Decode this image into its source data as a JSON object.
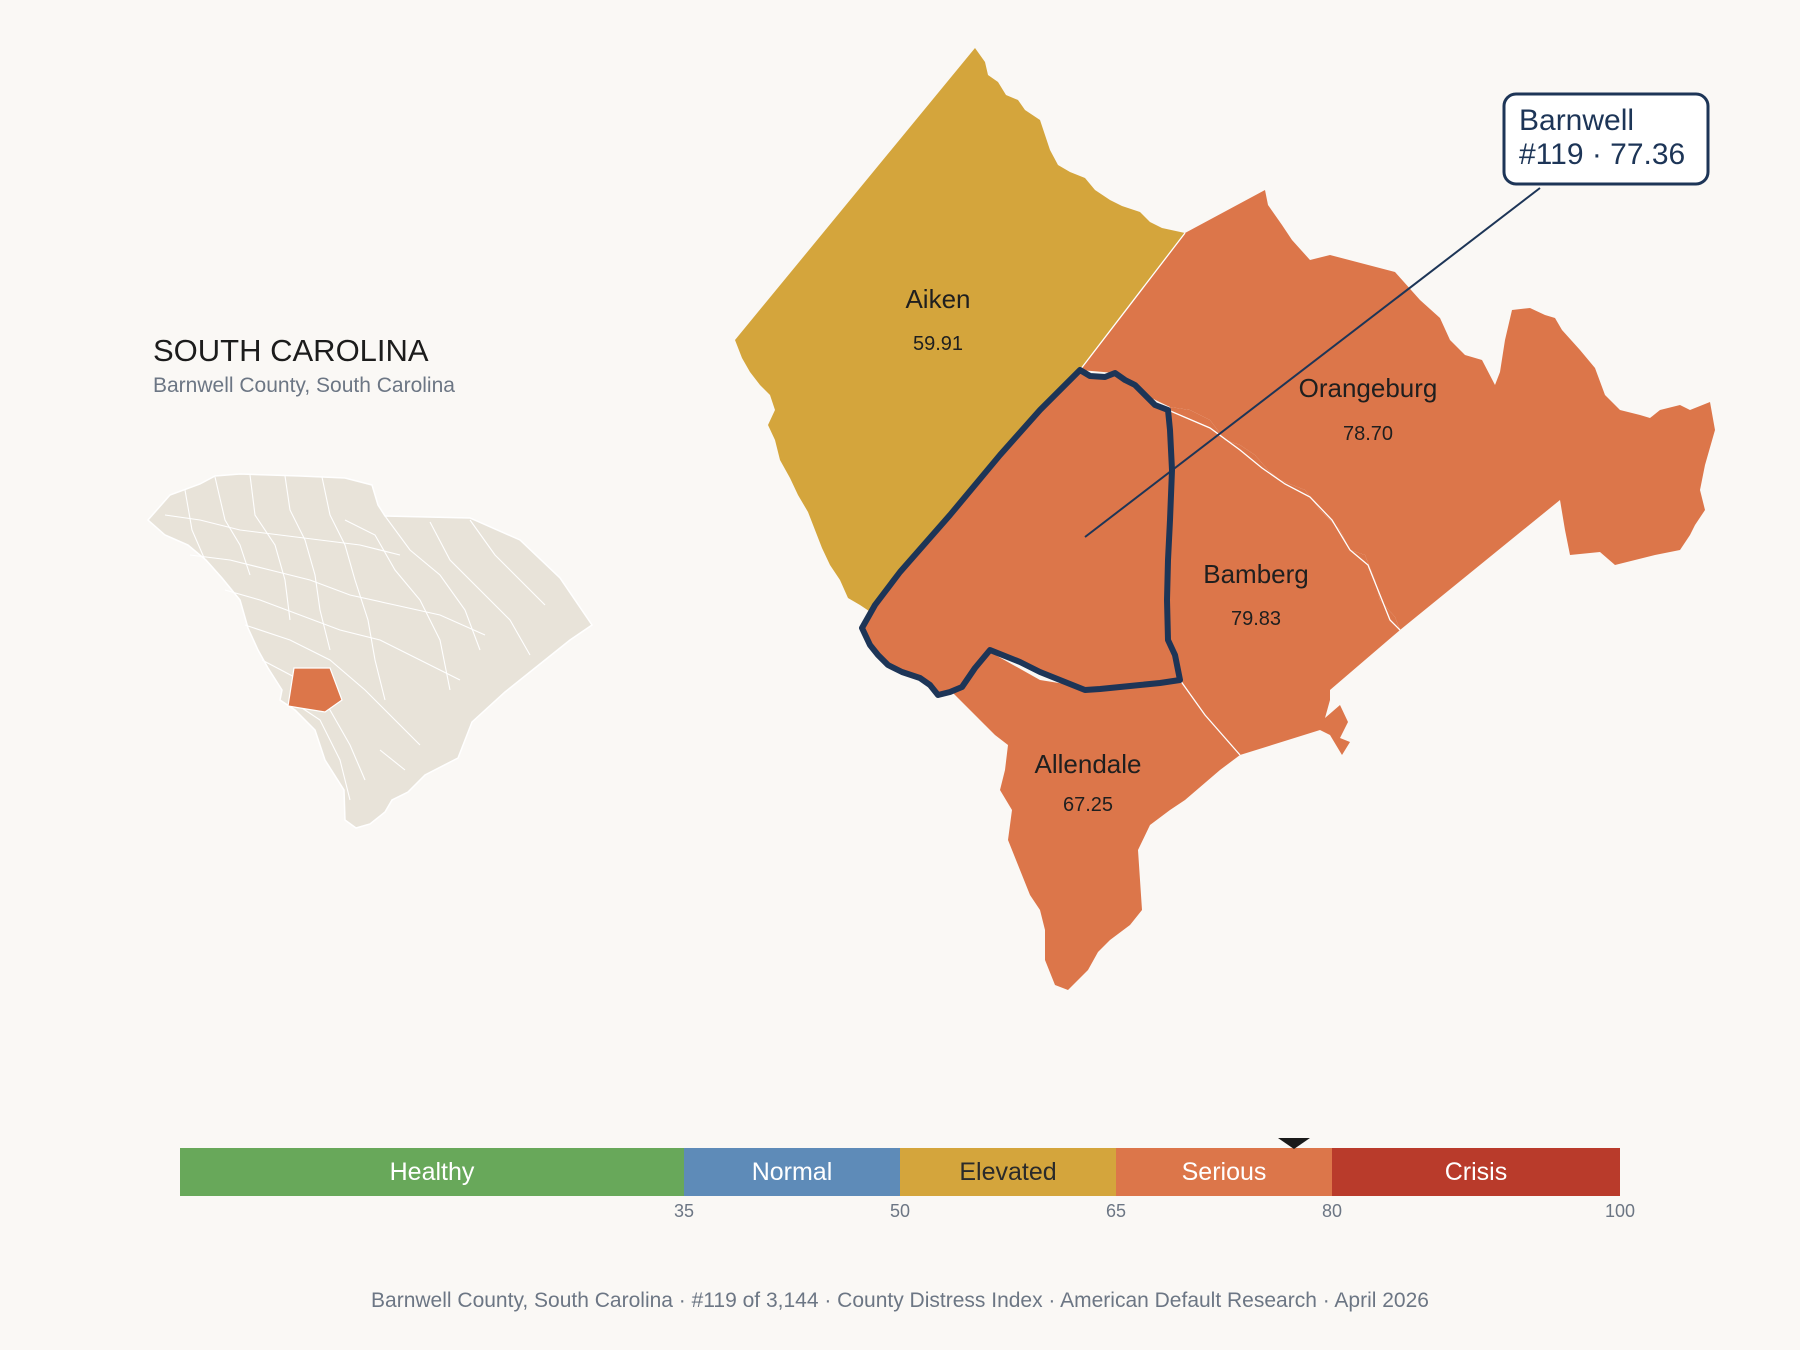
{
  "state": {
    "title": "SOUTH CAROLINA",
    "subtitle": "Barnwell County, South Carolina"
  },
  "colors": {
    "background": "#faf8f5",
    "inset_fill": "#e8e3d9",
    "inset_stroke": "#ffffff",
    "highlight": "#dc764a",
    "outline": "#1d3557",
    "elevated": "#d4a53c",
    "serious": "#dc764a"
  },
  "counties": [
    {
      "name": "Aiken",
      "value": "59.91",
      "category": "Elevated",
      "color": "#d4a53c"
    },
    {
      "name": "Orangeburg",
      "value": "78.70",
      "category": "Serious",
      "color": "#dc764a"
    },
    {
      "name": "Bamberg",
      "value": "79.83",
      "category": "Serious",
      "color": "#dc764a"
    },
    {
      "name": "Allendale",
      "value": "67.25",
      "category": "Serious",
      "color": "#dc764a"
    },
    {
      "name": "Barnwell",
      "value": "77.36",
      "category": "Serious",
      "color": "#dc764a",
      "focus": true
    }
  ],
  "callout": {
    "line1": "Barnwell",
    "line2": "#119 · 77.36"
  },
  "scale": {
    "min": 0,
    "max": 100,
    "marker_value": 77.36,
    "bands": [
      {
        "label": "Healthy",
        "from": 0,
        "to": 35,
        "color": "#68a85a",
        "text_color": "#ffffff"
      },
      {
        "label": "Normal",
        "from": 35,
        "to": 50,
        "color": "#5e8bb8",
        "text_color": "#ffffff"
      },
      {
        "label": "Elevated",
        "from": 50,
        "to": 65,
        "color": "#d4a53c",
        "text_color": "#2a2a2a"
      },
      {
        "label": "Serious",
        "from": 65,
        "to": 80,
        "color": "#dc764a",
        "text_color": "#ffffff"
      },
      {
        "label": "Crisis",
        "from": 80,
        "to": 100,
        "color": "#b93b2b",
        "text_color": "#ffffff"
      }
    ],
    "ticks": [
      "35",
      "50",
      "65",
      "80",
      "100"
    ]
  },
  "footer": {
    "items": [
      "Barnwell County, South Carolina",
      "#119 of 3,144",
      "County Distress Index",
      "American Default Research",
      "April 2026"
    ],
    "separator": "·"
  }
}
